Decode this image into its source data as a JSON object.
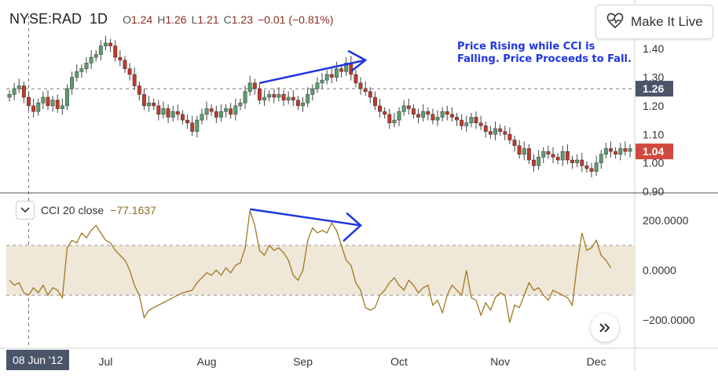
{
  "header": {
    "symbol": "NYSE:RAD",
    "timeframe": "1D",
    "open_key": "O",
    "open": "1.24",
    "high_key": "H",
    "high": "1.26",
    "low_key": "L",
    "low": "1.21",
    "close_key": "C",
    "close": "1.23",
    "change": "−0.01 (−0.81%)"
  },
  "live_button": {
    "label": "Make It Live",
    "icon": "heart-pulse-icon"
  },
  "annotation": {
    "line1": "Price Rising while CCI is",
    "line2": "Falling. Price Proceeds to Fall."
  },
  "cci_legend": {
    "label": "CCI 20 close",
    "value": "−77.1637"
  },
  "crosshair_date": "08 Jun '12",
  "colors": {
    "up": "#5a9e6f",
    "down": "#c0392b",
    "cci_line": "#a07820",
    "band": "#efe7d8",
    "arrow": "#1f36e0",
    "axis_text": "#333333"
  },
  "chart_data": [
    {
      "type": "candlestick",
      "title": "NYSE:RAD 1D",
      "ylim": [
        0.9,
        1.45
      ],
      "yticks": [
        "1.40",
        "1.30",
        "1.20",
        "1.10",
        "1.00",
        "0.90"
      ],
      "ytick_values": [
        1.4,
        1.3,
        1.2,
        1.1,
        1.0,
        0.9
      ],
      "price_labels": [
        {
          "label": "1.26",
          "value": 1.26,
          "color": "#4a5568"
        },
        {
          "label": "1.04",
          "value": 1.04,
          "color": "#d1493f"
        }
      ],
      "dashed_level": 1.26,
      "xticks": [
        "Jul",
        "Aug",
        "Sep",
        "Oct",
        "Nov",
        "Dec"
      ],
      "xtick_index": [
        20,
        41,
        61,
        81,
        102,
        122
      ],
      "crosshair_index": 4,
      "closes": [
        1.24,
        1.26,
        1.27,
        1.23,
        1.2,
        1.18,
        1.21,
        1.23,
        1.2,
        1.22,
        1.19,
        1.2,
        1.26,
        1.3,
        1.32,
        1.33,
        1.35,
        1.37,
        1.38,
        1.41,
        1.42,
        1.41,
        1.37,
        1.36,
        1.33,
        1.31,
        1.27,
        1.24,
        1.2,
        1.21,
        1.2,
        1.17,
        1.19,
        1.16,
        1.18,
        1.17,
        1.15,
        1.14,
        1.11,
        1.15,
        1.17,
        1.19,
        1.18,
        1.16,
        1.18,
        1.19,
        1.17,
        1.2,
        1.21,
        1.25,
        1.28,
        1.26,
        1.22,
        1.23,
        1.24,
        1.23,
        1.24,
        1.22,
        1.23,
        1.22,
        1.2,
        1.21,
        1.24,
        1.26,
        1.28,
        1.29,
        1.31,
        1.3,
        1.33,
        1.32,
        1.35,
        1.31,
        1.28,
        1.26,
        1.25,
        1.23,
        1.2,
        1.18,
        1.17,
        1.14,
        1.15,
        1.18,
        1.2,
        1.19,
        1.17,
        1.16,
        1.18,
        1.17,
        1.15,
        1.16,
        1.18,
        1.17,
        1.16,
        1.15,
        1.13,
        1.14,
        1.16,
        1.14,
        1.13,
        1.11,
        1.1,
        1.12,
        1.11,
        1.1,
        1.08,
        1.06,
        1.03,
        1.05,
        1.01,
        0.99,
        1.02,
        1.04,
        1.03,
        1.02,
        1.01,
        1.04,
        1.01,
        1.0,
        1.01,
        0.99,
        0.98,
        0.97,
        1.0,
        1.03,
        1.05,
        1.04,
        1.03,
        1.05,
        1.04,
        1.05
      ]
    },
    {
      "type": "line",
      "title": "CCI 20 close",
      "ylim": [
        -300,
        260
      ],
      "yticks": [
        "200.0000",
        "0.0000",
        "−200.0000"
      ],
      "ytick_values": [
        200,
        0,
        -200
      ],
      "band": [
        -100,
        100
      ],
      "values": [
        -40,
        -60,
        -50,
        -90,
        -100,
        -70,
        -90,
        -60,
        -100,
        -70,
        -80,
        -110,
        90,
        120,
        110,
        150,
        130,
        160,
        180,
        150,
        120,
        110,
        80,
        60,
        40,
        0,
        -60,
        -100,
        -190,
        -160,
        -150,
        -140,
        -130,
        -120,
        -110,
        -100,
        -90,
        -85,
        -80,
        -50,
        -30,
        -10,
        -20,
        0,
        -20,
        10,
        -10,
        20,
        30,
        90,
        240,
        180,
        80,
        60,
        100,
        80,
        90,
        70,
        40,
        -20,
        -40,
        0,
        120,
        170,
        150,
        160,
        150,
        190,
        160,
        100,
        40,
        20,
        -50,
        -80,
        -150,
        -160,
        -150,
        -100,
        -80,
        -50,
        -30,
        -60,
        -80,
        -40,
        -60,
        -90,
        -70,
        -60,
        -140,
        -120,
        -170,
        -100,
        -60,
        -80,
        -100,
        0,
        -110,
        -120,
        -180,
        -130,
        -160,
        -110,
        -90,
        -100,
        -210,
        -140,
        -150,
        -100,
        -50,
        -80,
        -70,
        -100,
        -120,
        -80,
        -90,
        -100,
        -110,
        -140,
        20,
        150,
        80,
        90,
        120,
        60,
        40,
        10
      ]
    }
  ]
}
